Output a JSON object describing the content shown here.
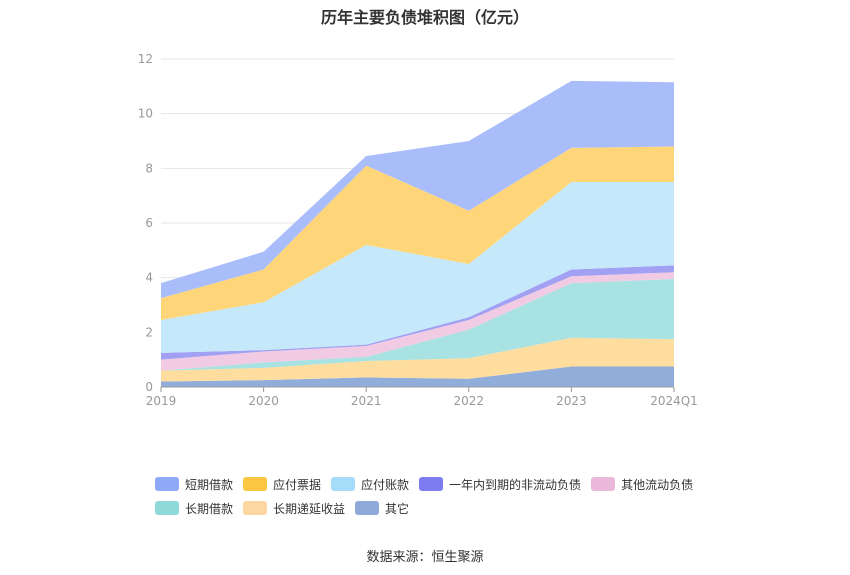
{
  "chart_data": {
    "type": "area",
    "stacked": true,
    "title": "历年主要负债堆积图（亿元）",
    "categories": [
      "2019",
      "2020",
      "2021",
      "2022",
      "2023",
      "2024Q1"
    ],
    "ylim": [
      0,
      12
    ],
    "yticks": [
      "0",
      "2",
      "4",
      "6",
      "8",
      "10",
      "12"
    ],
    "grid": true,
    "legend_position": "bottom",
    "series": [
      {
        "name": "其它",
        "color": "#91aedb",
        "values": [
          0.2,
          0.25,
          0.35,
          0.3,
          0.75,
          0.75
        ]
      },
      {
        "name": "长期递延收益",
        "color": "#fedd9f",
        "values": [
          0.4,
          0.45,
          0.6,
          0.75,
          1.05,
          1.0
        ]
      },
      {
        "name": "长期借款",
        "color": "#a8e2e2",
        "values": [
          0.0,
          0.2,
          0.15,
          1.05,
          2.0,
          2.2
        ]
      },
      {
        "name": "其他流动负债",
        "color": "#f0cbe3",
        "values": [
          0.4,
          0.4,
          0.4,
          0.35,
          0.25,
          0.25
        ]
      },
      {
        "name": "一年内到期的非流动负债",
        "color": "#a1a0f3",
        "values": [
          0.25,
          0.05,
          0.05,
          0.1,
          0.25,
          0.25
        ]
      },
      {
        "name": "应付账款",
        "color": "#c5e8fb",
        "values": [
          1.2,
          1.75,
          3.65,
          1.95,
          3.2,
          3.05
        ]
      },
      {
        "name": "应付票据",
        "color": "#fed679",
        "values": [
          0.8,
          1.2,
          2.9,
          1.95,
          1.25,
          1.3
        ]
      },
      {
        "name": "短期借款",
        "color": "#a9bdfb",
        "values": [
          0.55,
          0.65,
          0.35,
          2.55,
          2.45,
          2.35
        ]
      }
    ]
  },
  "legend": [
    {
      "name": "短期借款",
      "color": "#8ea9f8"
    },
    {
      "name": "应付票据",
      "color": "#fbc640"
    },
    {
      "name": "应付账款",
      "color": "#a6def9"
    },
    {
      "name": "一年内到期的非流动负债",
      "color": "#7f7cf2"
    },
    {
      "name": "其他流动负债",
      "color": "#eab9d9"
    },
    {
      "name": "长期借款",
      "color": "#8fd9d9"
    },
    {
      "name": "长期递延收益",
      "color": "#fdd7a0"
    },
    {
      "name": "其它",
      "color": "#8faad8"
    }
  ],
  "source": "数据来源：恒生聚源"
}
